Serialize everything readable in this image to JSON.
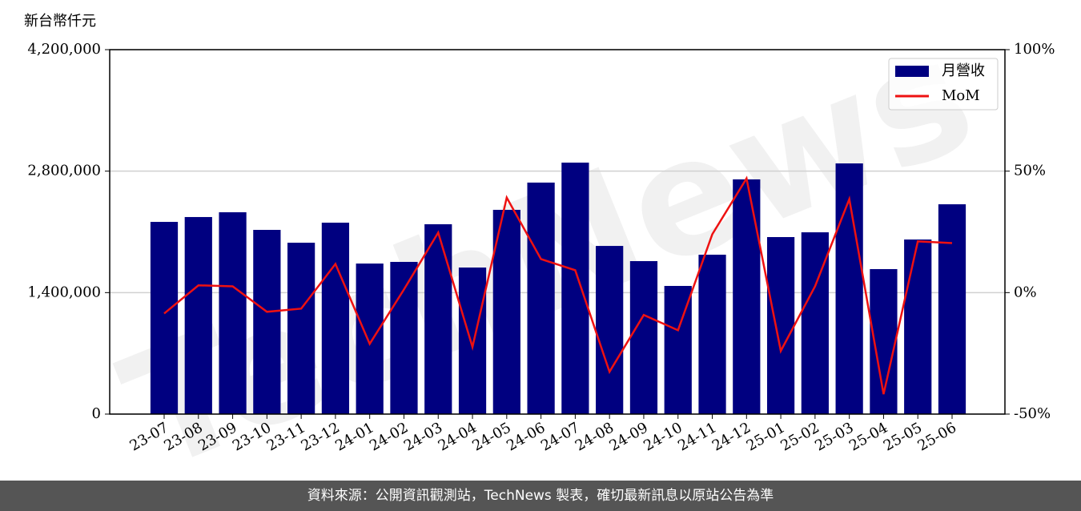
{
  "chart_data": {
    "type": "bar",
    "y_label": "新台幣仟元",
    "watermark": "TechNews",
    "categories": [
      "23-07",
      "23-08",
      "23-09",
      "23-10",
      "23-11",
      "23-12",
      "24-01",
      "24-02",
      "24-03",
      "24-04",
      "24-05",
      "24-06",
      "24-07",
      "24-08",
      "24-09",
      "24-10",
      "24-11",
      "24-12",
      "25-01",
      "25-02",
      "25-03",
      "25-04",
      "25-05",
      "25-06"
    ],
    "series": [
      {
        "name": "月營收",
        "type": "bar",
        "color": "#000080",
        "values": [
          2215000,
          2271000,
          2326000,
          2123000,
          1975000,
          2206000,
          1735000,
          1754000,
          2188000,
          1689000,
          2354000,
          2668000,
          2898000,
          1938000,
          1763000,
          1477000,
          1837000,
          2705000,
          2040000,
          2095000,
          2889000,
          1671000,
          2012000,
          2418000
        ]
      },
      {
        "name": "MoM",
        "type": "line",
        "axis": "y2",
        "color": "#ee1111",
        "values": [
          -8.6,
          3.0,
          2.6,
          -7.9,
          -6.6,
          11.8,
          -21.1,
          1.3,
          24.7,
          -22.4,
          39.1,
          13.8,
          9.2,
          -32.6,
          -9.2,
          -15.5,
          24.0,
          47.0,
          -24.0,
          2.6,
          38.5,
          -41.8,
          21.1,
          20.4
        ]
      }
    ],
    "ylim": [
      0,
      4200000
    ],
    "yticks": [
      0,
      {
        "value": 1400000,
        "label": "1,400,000"
      },
      {
        "value": 2800000,
        "label": "2,800,000"
      },
      {
        "value": 4200000,
        "label": "4,200,000"
      }
    ],
    "y2lim": [
      -50,
      100
    ],
    "y2ticks": [
      {
        "value": -50,
        "label": "-50%"
      },
      {
        "value": 0,
        "label": "0%"
      },
      {
        "value": 50,
        "label": "50%"
      },
      {
        "value": 100,
        "label": "100%"
      }
    ],
    "grid": true,
    "legend": "upper right"
  },
  "source": "資料來源：公開資訊觀測站，TechNews 製表，確切最新訊息以原站公告為準"
}
